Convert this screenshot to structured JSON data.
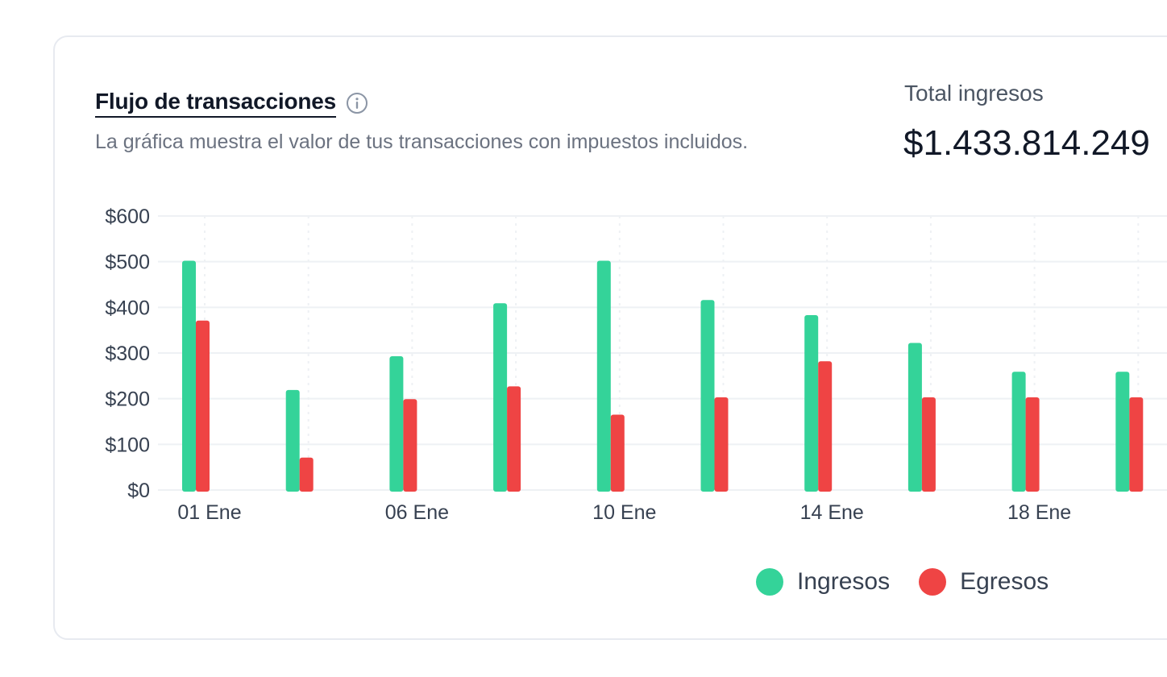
{
  "header": {
    "title": "Flujo de transacciones",
    "subtitle": "La gráfica muestra el valor de tus transacciones con impuestos incluidos.",
    "info_icon": "info-circle-icon"
  },
  "summary": {
    "total_label": "Total ingresos",
    "total_value": "$1.433.814.249"
  },
  "colors": {
    "ingresos": "#34d399",
    "egresos": "#ef4444",
    "grid": "#eef1f4",
    "axis_text": "#374151"
  },
  "legend": [
    {
      "label": "Ingresos",
      "color": "#34d399"
    },
    {
      "label": "Egresos",
      "color": "#ef4444"
    }
  ],
  "chart_data": {
    "type": "bar",
    "ylim": [
      0,
      600
    ],
    "y_ticks": [
      0,
      100,
      200,
      300,
      400,
      500,
      600
    ],
    "y_tick_labels": [
      "$0",
      "$100",
      "$200",
      "$300",
      "$400",
      "$500",
      "$600"
    ],
    "categories": [
      "01 Ene",
      "",
      "06 Ene",
      "",
      "10 Ene",
      "",
      "14 Ene",
      "",
      "18 Ene",
      ""
    ],
    "x_tick_labels": [
      "01 Ene",
      "06 Ene",
      "10 Ene",
      "14 Ene",
      "18 Ene"
    ],
    "x_tick_positions": [
      0,
      2,
      4,
      6,
      8
    ],
    "grid": true,
    "legend_position": "bottom-right",
    "series": [
      {
        "name": "Ingresos",
        "color": "#34d399",
        "values": [
          502,
          219,
          293,
          409,
          502,
          416,
          383,
          322,
          259,
          259
        ]
      },
      {
        "name": "Egresos",
        "color": "#ef4444",
        "values": [
          371,
          71,
          199,
          227,
          165,
          203,
          282,
          203,
          203,
          203
        ]
      }
    ]
  }
}
